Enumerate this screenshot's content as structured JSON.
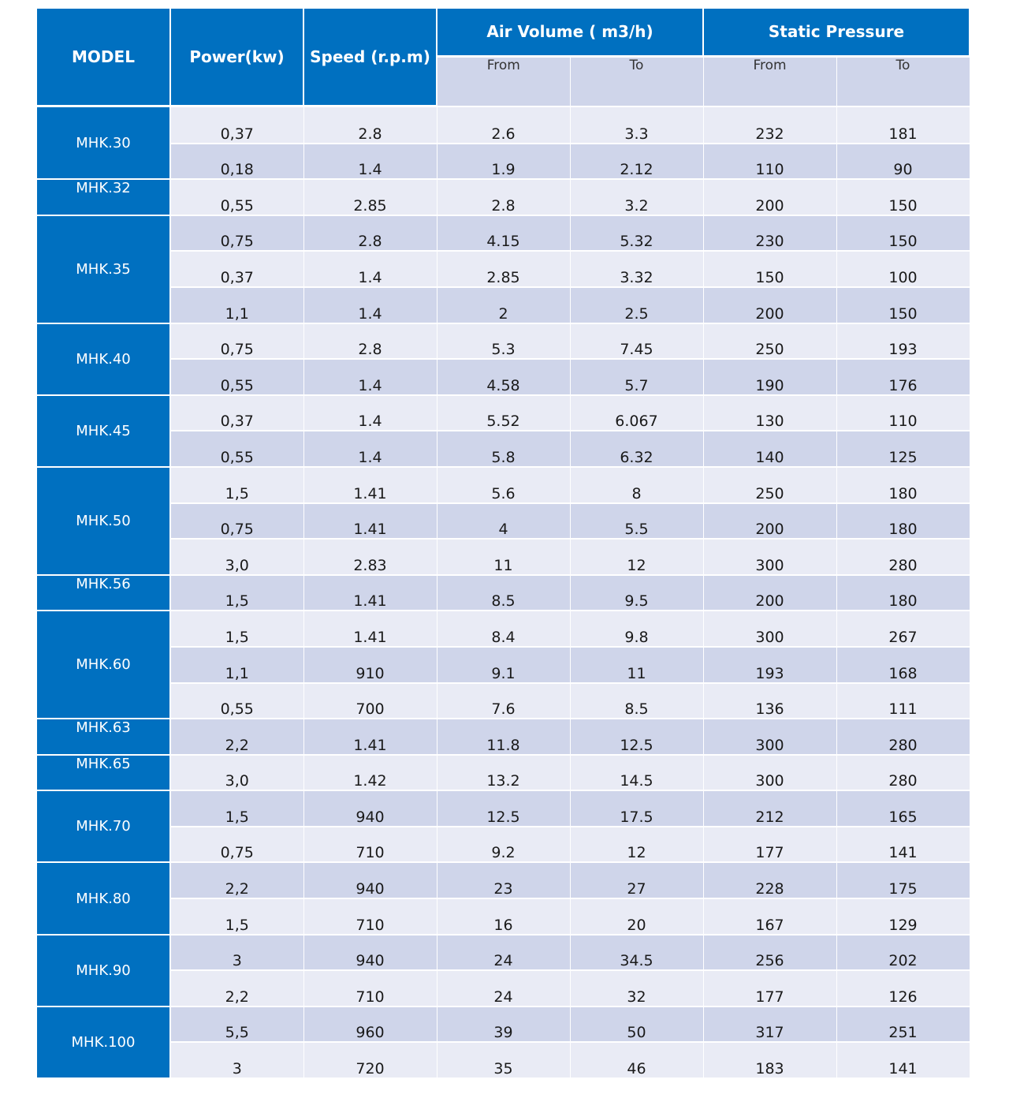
{
  "header": {
    "model": "MODEL",
    "power": "Power(kw)",
    "speed": "Speed (r.p.m)",
    "air_volume": "Air Volume ( m3/h)",
    "static_pressure": "Static Pressure",
    "air_from": "From",
    "air_to": "To",
    "sp_from": "From",
    "sp_to": "To"
  },
  "groups": [
    {
      "model": "MHK.30",
      "rows": [
        [
          "0,37",
          "2.8",
          "2.6",
          "3.3",
          "232",
          "181"
        ],
        [
          "0,18",
          "1.4",
          "1.9",
          "2.12",
          "110",
          "90"
        ]
      ]
    },
    {
      "model": "MHK.32",
      "rows": [
        [
          "0,55",
          "2.85",
          "2.8",
          "3.2",
          "200",
          "150"
        ]
      ]
    },
    {
      "model": "MHK.35",
      "rows": [
        [
          "0,75",
          "2.8",
          "4.15",
          "5.32",
          "230",
          "150"
        ],
        [
          "0,37",
          "1.4",
          "2.85",
          "3.32",
          "150",
          "100"
        ],
        [
          "1,1",
          "1.4",
          "2",
          "2.5",
          "200",
          "150"
        ]
      ]
    },
    {
      "model": "MHK.40",
      "rows": [
        [
          "0,75",
          "2.8",
          "5.3",
          "7.45",
          "250",
          "193"
        ],
        [
          "0,55",
          "1.4",
          "4.58",
          "5.7",
          "190",
          "176"
        ]
      ]
    },
    {
      "model": "MHK.45",
      "rows": [
        [
          "0,37",
          "1.4",
          "5.52",
          "6.067",
          "130",
          "110"
        ],
        [
          "0,55",
          "1.4",
          "5.8",
          "6.32",
          "140",
          "125"
        ]
      ]
    },
    {
      "model": "MHK.50",
      "rows": [
        [
          "1,5",
          "1.41",
          "5.6",
          "8",
          "250",
          "180"
        ],
        [
          "0,75",
          "1.41",
          "4",
          "5.5",
          "200",
          "180"
        ],
        [
          "3,0",
          "2.83",
          "11",
          "12",
          "300",
          "280"
        ]
      ]
    },
    {
      "model": "MHK.56",
      "rows": [
        [
          "1,5",
          "1.41",
          "8.5",
          "9.5",
          "200",
          "180"
        ]
      ]
    },
    {
      "model": "MHK.60",
      "rows": [
        [
          "1,5",
          "1.41",
          "8.4",
          "9.8",
          "300",
          "267"
        ],
        [
          "1,1",
          "910",
          "9.1",
          "11",
          "193",
          "168"
        ],
        [
          "0,55",
          "700",
          "7.6",
          "8.5",
          "136",
          "111"
        ]
      ]
    },
    {
      "model": "MHK.63",
      "rows": [
        [
          "2,2",
          "1.41",
          "11.8",
          "12.5",
          "300",
          "280"
        ]
      ]
    },
    {
      "model": "MHK.65",
      "rows": [
        [
          "3,0",
          "1.42",
          "13.2",
          "14.5",
          "300",
          "280"
        ]
      ]
    },
    {
      "model": "MHK.70",
      "rows": [
        [
          "1,5",
          "940",
          "12.5",
          "17.5",
          "212",
          "165"
        ],
        [
          "0,75",
          "710",
          "9.2",
          "12",
          "177",
          "141"
        ]
      ]
    },
    {
      "model": "MHK.80",
      "rows": [
        [
          "2,2",
          "940",
          "23",
          "27",
          "228",
          "175"
        ],
        [
          "1,5",
          "710",
          "16",
          "20",
          "167",
          "129"
        ]
      ]
    },
    {
      "model": "MHK.90",
      "rows": [
        [
          "3",
          "940",
          "24",
          "34.5",
          "256",
          "202"
        ],
        [
          "2,2",
          "710",
          "24",
          "32",
          "177",
          "126"
        ]
      ]
    },
    {
      "model": "MHK.100",
      "rows": [
        [
          "5,5",
          "960",
          "39",
          "50",
          "317",
          "251"
        ],
        [
          "3",
          "720",
          "35",
          "46",
          "183",
          "141"
        ]
      ]
    }
  ]
}
